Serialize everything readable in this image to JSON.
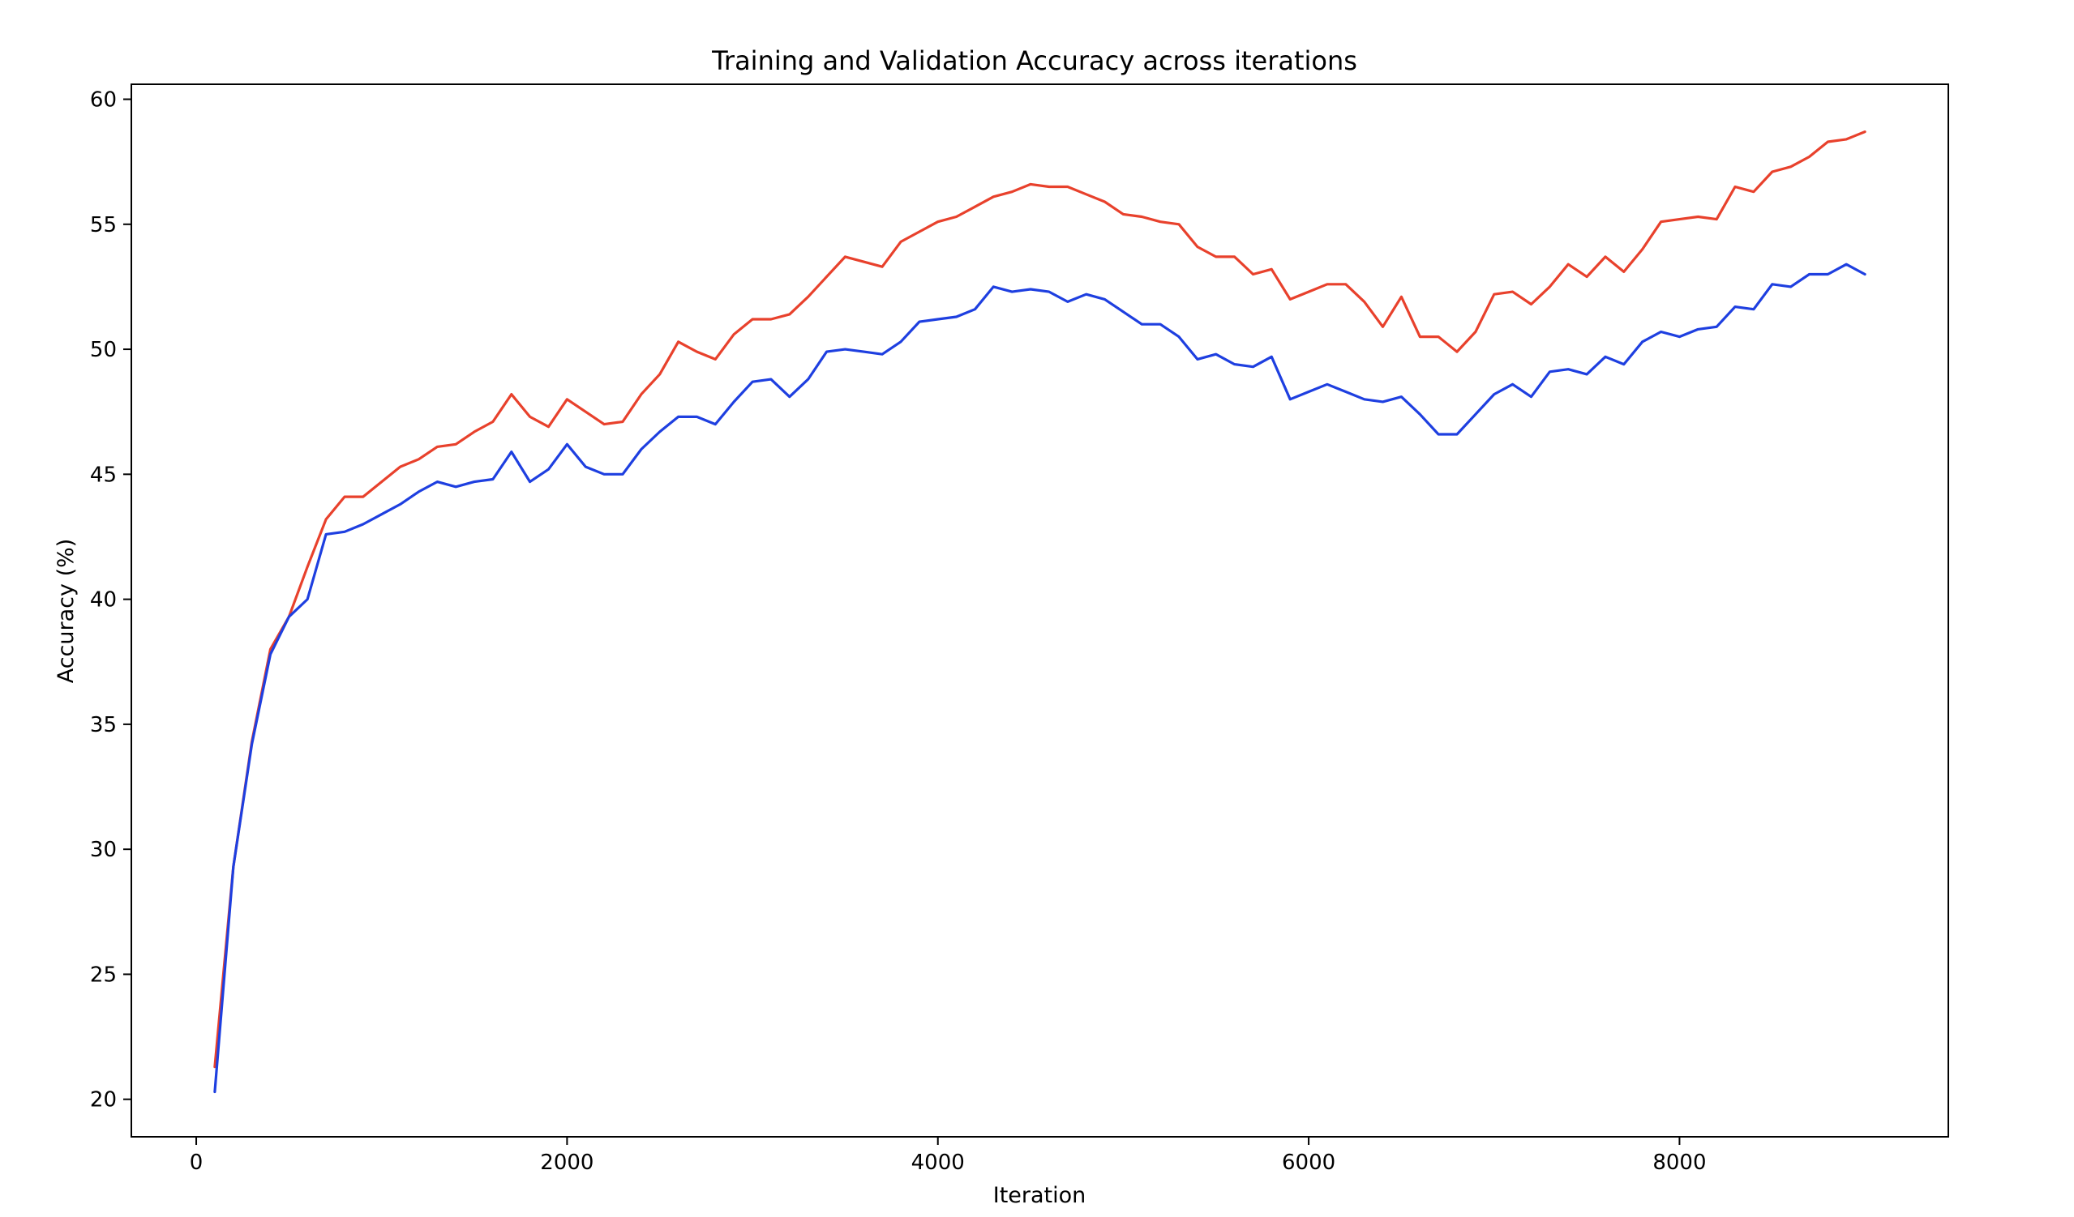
{
  "chart_data": {
    "type": "line",
    "title": "Training and Validation Accuracy across iterations",
    "xlabel": "Iteration",
    "ylabel": "Accuracy (%)",
    "xlim": [
      -350,
      9450
    ],
    "ylim": [
      18.5,
      60.6
    ],
    "xticks": [
      0,
      2000,
      4000,
      6000,
      8000
    ],
    "yticks": [
      20,
      25,
      30,
      35,
      40,
      45,
      50,
      55,
      60
    ],
    "grid": false,
    "legend": "none",
    "x": [
      100,
      200,
      300,
      400,
      500,
      600,
      700,
      800,
      900,
      1000,
      1100,
      1200,
      1300,
      1400,
      1500,
      1600,
      1700,
      1800,
      1900,
      2000,
      2100,
      2200,
      2300,
      2400,
      2500,
      2600,
      2700,
      2800,
      2900,
      3000,
      3100,
      3200,
      3300,
      3400,
      3500,
      3600,
      3700,
      3800,
      3900,
      4000,
      4100,
      4200,
      4300,
      4400,
      4500,
      4600,
      4700,
      4800,
      4900,
      5000,
      5100,
      5200,
      5300,
      5400,
      5500,
      5600,
      5700,
      5800,
      5900,
      6000,
      6100,
      6200,
      6300,
      6400,
      6500,
      6600,
      6700,
      6800,
      6900,
      7000,
      7100,
      7200,
      7300,
      7400,
      7500,
      7600,
      7700,
      7800,
      7900,
      8000,
      8100,
      8200,
      8300,
      8400,
      8500,
      8600,
      8700,
      8800,
      8900,
      9000
    ],
    "series": [
      {
        "color": "#e8412c",
        "values": [
          21.3,
          29.3,
          34.3,
          38.0,
          39.3,
          41.3,
          43.2,
          44.1,
          44.1,
          44.7,
          45.3,
          45.6,
          46.1,
          46.2,
          46.7,
          47.1,
          48.2,
          47.3,
          46.9,
          48.0,
          47.5,
          47.0,
          47.1,
          48.2,
          49.0,
          50.3,
          49.9,
          49.6,
          50.6,
          51.2,
          51.2,
          51.4,
          52.1,
          52.9,
          53.7,
          53.5,
          53.3,
          54.3,
          54.7,
          55.1,
          55.3,
          55.7,
          56.1,
          56.3,
          56.6,
          56.5,
          56.5,
          56.2,
          55.9,
          55.4,
          55.3,
          55.1,
          55.0,
          54.1,
          53.7,
          53.7,
          53.0,
          53.2,
          52.0,
          52.3,
          52.6,
          52.6,
          51.9,
          50.9,
          52.1,
          50.5,
          50.5,
          49.9,
          50.7,
          52.2,
          52.3,
          51.8,
          52.5,
          53.4,
          52.9,
          53.7,
          53.1,
          54.0,
          55.1,
          55.2,
          55.3,
          55.2,
          56.5,
          56.3,
          57.1,
          57.3,
          57.7,
          58.3,
          58.4,
          58.7
        ]
      },
      {
        "color": "#1e3fe0",
        "values": [
          20.3,
          29.3,
          34.2,
          37.8,
          39.3,
          40.0,
          42.6,
          42.7,
          43.0,
          43.4,
          43.8,
          44.3,
          44.7,
          44.5,
          44.7,
          44.8,
          45.9,
          44.7,
          45.2,
          46.2,
          45.3,
          45.0,
          45.0,
          46.0,
          46.7,
          47.3,
          47.3,
          47.0,
          47.9,
          48.7,
          48.8,
          48.1,
          48.8,
          49.9,
          50.0,
          49.9,
          49.8,
          50.3,
          51.1,
          51.2,
          51.3,
          51.6,
          52.5,
          52.3,
          52.4,
          52.3,
          51.9,
          52.2,
          52.0,
          51.5,
          51.0,
          51.0,
          50.5,
          49.6,
          49.8,
          49.4,
          49.3,
          49.7,
          48.0,
          48.3,
          48.6,
          48.3,
          48.0,
          47.9,
          48.1,
          47.4,
          46.6,
          46.6,
          47.4,
          48.2,
          48.6,
          48.1,
          49.1,
          49.2,
          49.0,
          49.7,
          49.4,
          50.3,
          50.7,
          50.5,
          50.8,
          50.9,
          51.7,
          51.6,
          52.6,
          52.5,
          53.0,
          53.0,
          53.4,
          53.0
        ]
      }
    ]
  }
}
